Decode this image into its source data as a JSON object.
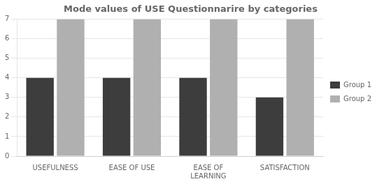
{
  "chart_data": {
    "type": "bar",
    "title": "Mode values of USE Questionnarire by categories",
    "categories": [
      "USEFULNESS",
      "EASE OF USE",
      "EASE OF\nLEARNING",
      "SATISFACTION"
    ],
    "series": [
      {
        "name": "Group 1",
        "color": "#3d3d3d",
        "values": [
          4,
          4,
          4,
          3
        ]
      },
      {
        "name": "Group 2",
        "color": "#b0b0b0",
        "values": [
          7,
          7,
          7,
          7
        ]
      }
    ],
    "ylim": [
      0,
      7
    ],
    "yticks": [
      0,
      1,
      2,
      3,
      4,
      5,
      6,
      7
    ],
    "grid": true,
    "legend": "right"
  }
}
